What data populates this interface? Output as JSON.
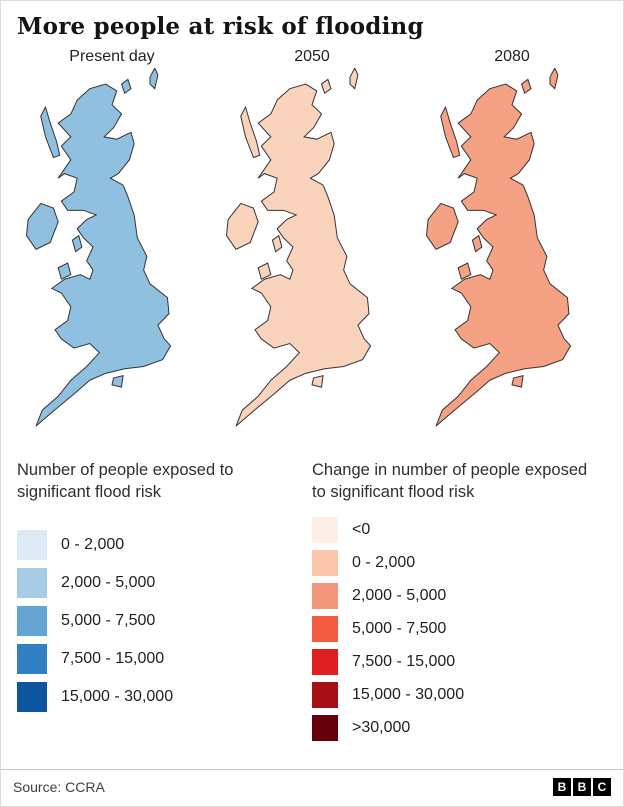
{
  "title": "More people at risk of flooding",
  "maps": [
    {
      "label": "Present day",
      "base_color": "#8fc0df"
    },
    {
      "label": "2050",
      "base_color": "#fad3bd"
    },
    {
      "label": "2080",
      "base_color": "#f5a184"
    }
  ],
  "legend_left": {
    "title": "Number of people exposed to significant flood risk",
    "items": [
      {
        "label": "0 - 2,000",
        "color": "#ddeaf6"
      },
      {
        "label": "2,000 - 5,000",
        "color": "#a5cbe5"
      },
      {
        "label": "5,000 - 7,500",
        "color": "#64a5d3"
      },
      {
        "label": "7,500 - 15,000",
        "color": "#3181c2"
      },
      {
        "label": "15,000 - 30,000",
        "color": "#0d559e"
      }
    ]
  },
  "legend_right": {
    "title": "Change in number of people exposed to significant flood risk",
    "items": [
      {
        "label": "<0",
        "color": "#fdeee6"
      },
      {
        "label": "0 - 2,000",
        "color": "#fac5ab"
      },
      {
        "label": "2,000 - 5,000",
        "color": "#f3977a"
      },
      {
        "label": "5,000 - 7,500",
        "color": "#f25b3f"
      },
      {
        "label": "7,500 - 15,000",
        "color": "#e02020"
      },
      {
        "label": "15,000 - 30,000",
        "color": "#a50f15"
      },
      {
        "label": ">30,000",
        "color": "#67000d"
      }
    ]
  },
  "footer": {
    "source": "Source: CCRA",
    "logo_letters": [
      "B",
      "B",
      "C"
    ]
  },
  "chart_data": {
    "type": "choropleth",
    "title": "More people at risk of flooding",
    "region": "United Kingdom",
    "source": "CCRA",
    "maps": [
      {
        "label": "Present day",
        "measure": "Number of people exposed to significant flood risk",
        "palette": "blues",
        "bins": [
          "0 - 2,000",
          "2,000 - 5,000",
          "5,000 - 7,500",
          "7,500 - 15,000",
          "15,000 - 30,000"
        ]
      },
      {
        "label": "2050",
        "measure": "Change in number of people exposed to significant flood risk",
        "palette": "reds",
        "bins": [
          "<0",
          "0 - 2,000",
          "2,000 - 5,000",
          "5,000 - 7,500",
          "7,500 - 15,000",
          "15,000 - 30,000",
          ">30,000"
        ]
      },
      {
        "label": "2080",
        "measure": "Change in number of people exposed to significant flood risk",
        "palette": "reds",
        "bins": [
          "<0",
          "0 - 2,000",
          "2,000 - 5,000",
          "5,000 - 7,500",
          "7,500 - 15,000",
          "15,000 - 30,000",
          ">30,000"
        ]
      }
    ]
  }
}
